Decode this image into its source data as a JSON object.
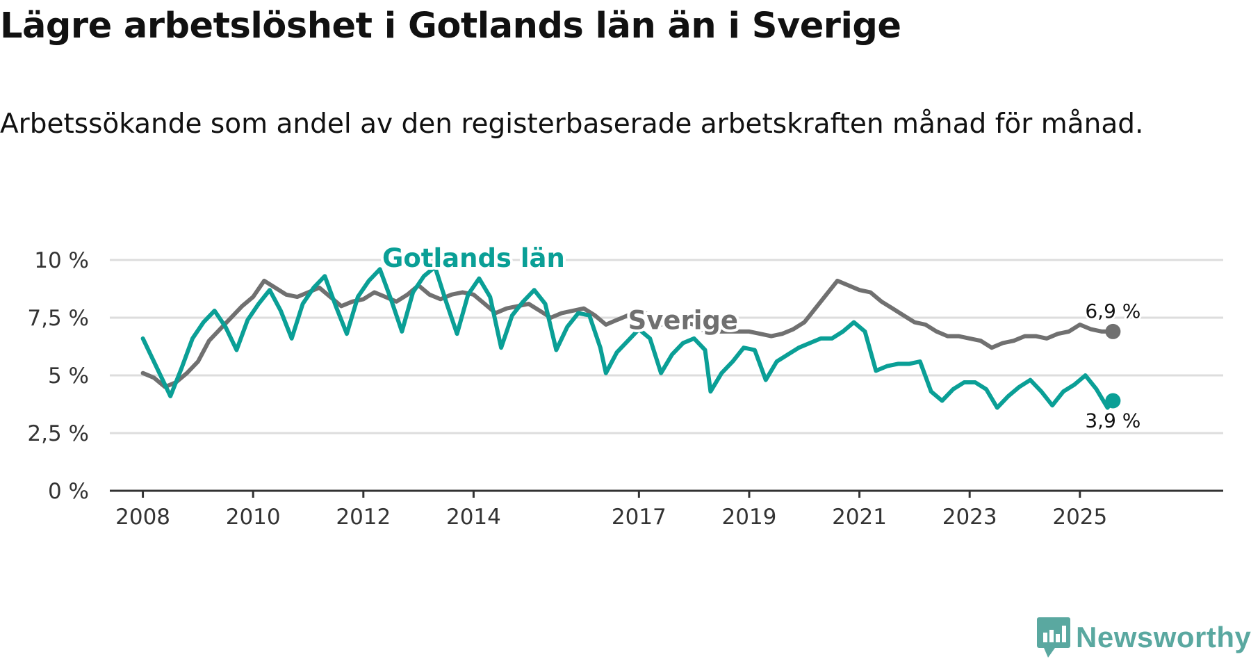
{
  "title": "Lägre arbetslöshet i Gotlands län än i Sverige",
  "subtitle": "Arbetssökande som andel av den registerbaserade arbetskraften månad för månad.",
  "brand": {
    "name": "Newsworthy",
    "icon": "newsworthy-logo-icon"
  },
  "colors": {
    "gotland": "#0a9f96",
    "sverige": "#707070",
    "grid": "#dddddd",
    "axis": "#333333",
    "brand": "#5aa8a0"
  },
  "chart_data": {
    "type": "line",
    "title": "Lägre arbetslöshet i Gotlands län än i Sverige",
    "subtitle": "Arbetssökande som andel av den registerbaserade arbetskraften månad för månad.",
    "xlabel": "",
    "ylabel": "",
    "ylim": [
      0,
      10
    ],
    "xlim": [
      2007.4,
      2027.6
    ],
    "yticks": [
      {
        "value": 0,
        "label": "0 %"
      },
      {
        "value": 2.5,
        "label": "2,5 %"
      },
      {
        "value": 5,
        "label": "5 %"
      },
      {
        "value": 7.5,
        "label": "7,5 %"
      },
      {
        "value": 10,
        "label": "10 %"
      }
    ],
    "xticks": [
      {
        "value": 2008,
        "label": "2008"
      },
      {
        "value": 2010,
        "label": "2010"
      },
      {
        "value": 2012,
        "label": "2012"
      },
      {
        "value": 2014,
        "label": "2014"
      },
      {
        "value": 2017,
        "label": "2017"
      },
      {
        "value": 2019,
        "label": "2019"
      },
      {
        "value": 2021,
        "label": "2021"
      },
      {
        "value": 2023,
        "label": "2023"
      },
      {
        "value": 2025,
        "label": "2025"
      }
    ],
    "grid": true,
    "series": [
      {
        "name": "Sverige",
        "label": "Sverige",
        "label_at": [
          2017.8,
          7.0
        ],
        "end_label": "6,9 %",
        "points": [
          [
            2008.0,
            5.1
          ],
          [
            2008.2,
            4.9
          ],
          [
            2008.4,
            4.5
          ],
          [
            2008.6,
            4.7
          ],
          [
            2008.8,
            5.1
          ],
          [
            2009.0,
            5.6
          ],
          [
            2009.2,
            6.5
          ],
          [
            2009.4,
            7.0
          ],
          [
            2009.6,
            7.5
          ],
          [
            2009.8,
            8.0
          ],
          [
            2010.0,
            8.4
          ],
          [
            2010.2,
            9.1
          ],
          [
            2010.4,
            8.8
          ],
          [
            2010.6,
            8.5
          ],
          [
            2010.8,
            8.4
          ],
          [
            2011.0,
            8.6
          ],
          [
            2011.2,
            8.8
          ],
          [
            2011.4,
            8.4
          ],
          [
            2011.6,
            8.0
          ],
          [
            2011.8,
            8.2
          ],
          [
            2012.0,
            8.3
          ],
          [
            2012.2,
            8.6
          ],
          [
            2012.4,
            8.4
          ],
          [
            2012.6,
            8.2
          ],
          [
            2012.8,
            8.5
          ],
          [
            2013.0,
            8.9
          ],
          [
            2013.2,
            8.5
          ],
          [
            2013.4,
            8.3
          ],
          [
            2013.6,
            8.5
          ],
          [
            2013.8,
            8.6
          ],
          [
            2014.0,
            8.5
          ],
          [
            2014.2,
            8.1
          ],
          [
            2014.4,
            7.7
          ],
          [
            2014.6,
            7.9
          ],
          [
            2014.8,
            8.0
          ],
          [
            2015.0,
            8.1
          ],
          [
            2015.2,
            7.8
          ],
          [
            2015.4,
            7.5
          ],
          [
            2015.6,
            7.7
          ],
          [
            2015.8,
            7.8
          ],
          [
            2016.0,
            7.9
          ],
          [
            2016.2,
            7.6
          ],
          [
            2016.4,
            7.2
          ],
          [
            2016.6,
            7.4
          ],
          [
            2016.8,
            7.6
          ],
          [
            2017.0,
            7.8
          ],
          [
            2017.2,
            7.6
          ],
          [
            2017.4,
            7.2
          ],
          [
            2017.6,
            7.4
          ],
          [
            2017.8,
            7.3
          ],
          [
            2018.0,
            7.2
          ],
          [
            2018.2,
            6.9
          ],
          [
            2018.4,
            6.9
          ],
          [
            2018.6,
            6.9
          ],
          [
            2018.8,
            6.9
          ],
          [
            2019.0,
            6.9
          ],
          [
            2019.2,
            6.8
          ],
          [
            2019.4,
            6.7
          ],
          [
            2019.6,
            6.8
          ],
          [
            2019.8,
            7.0
          ],
          [
            2020.0,
            7.3
          ],
          [
            2020.2,
            7.9
          ],
          [
            2020.4,
            8.5
          ],
          [
            2020.6,
            9.1
          ],
          [
            2020.8,
            8.9
          ],
          [
            2021.0,
            8.7
          ],
          [
            2021.2,
            8.6
          ],
          [
            2021.4,
            8.2
          ],
          [
            2021.6,
            7.9
          ],
          [
            2021.8,
            7.6
          ],
          [
            2022.0,
            7.3
          ],
          [
            2022.2,
            7.2
          ],
          [
            2022.4,
            6.9
          ],
          [
            2022.6,
            6.7
          ],
          [
            2022.8,
            6.7
          ],
          [
            2023.0,
            6.6
          ],
          [
            2023.2,
            6.5
          ],
          [
            2023.4,
            6.2
          ],
          [
            2023.6,
            6.4
          ],
          [
            2023.8,
            6.5
          ],
          [
            2024.0,
            6.7
          ],
          [
            2024.2,
            6.7
          ],
          [
            2024.4,
            6.6
          ],
          [
            2024.6,
            6.8
          ],
          [
            2024.8,
            6.9
          ],
          [
            2025.0,
            7.2
          ],
          [
            2025.2,
            7.0
          ],
          [
            2025.4,
            6.9
          ],
          [
            2025.6,
            6.9
          ]
        ]
      },
      {
        "name": "Gotlands län",
        "label": "Gotlands län",
        "label_at": [
          2014.0,
          9.7
        ],
        "end_label": "3,9 %",
        "points": [
          [
            2008.0,
            6.6
          ],
          [
            2008.2,
            5.6
          ],
          [
            2008.4,
            4.6
          ],
          [
            2008.5,
            4.1
          ],
          [
            2008.7,
            5.3
          ],
          [
            2008.9,
            6.6
          ],
          [
            2009.1,
            7.3
          ],
          [
            2009.3,
            7.8
          ],
          [
            2009.5,
            7.1
          ],
          [
            2009.7,
            6.1
          ],
          [
            2009.9,
            7.4
          ],
          [
            2010.1,
            8.1
          ],
          [
            2010.3,
            8.7
          ],
          [
            2010.5,
            7.8
          ],
          [
            2010.7,
            6.6
          ],
          [
            2010.9,
            8.1
          ],
          [
            2011.1,
            8.8
          ],
          [
            2011.3,
            9.3
          ],
          [
            2011.5,
            8.0
          ],
          [
            2011.7,
            6.8
          ],
          [
            2011.9,
            8.4
          ],
          [
            2012.1,
            9.1
          ],
          [
            2012.3,
            9.6
          ],
          [
            2012.5,
            8.3
          ],
          [
            2012.7,
            6.9
          ],
          [
            2012.9,
            8.6
          ],
          [
            2013.1,
            9.3
          ],
          [
            2013.3,
            9.7
          ],
          [
            2013.5,
            8.2
          ],
          [
            2013.7,
            6.8
          ],
          [
            2013.9,
            8.5
          ],
          [
            2014.1,
            9.2
          ],
          [
            2014.3,
            8.4
          ],
          [
            2014.5,
            6.2
          ],
          [
            2014.7,
            7.6
          ],
          [
            2014.9,
            8.2
          ],
          [
            2015.1,
            8.7
          ],
          [
            2015.3,
            8.1
          ],
          [
            2015.5,
            6.1
          ],
          [
            2015.7,
            7.1
          ],
          [
            2015.9,
            7.7
          ],
          [
            2016.1,
            7.6
          ],
          [
            2016.3,
            6.2
          ],
          [
            2016.4,
            5.1
          ],
          [
            2016.6,
            6.0
          ],
          [
            2016.8,
            6.5
          ],
          [
            2017.0,
            7.0
          ],
          [
            2017.2,
            6.6
          ],
          [
            2017.4,
            5.1
          ],
          [
            2017.6,
            5.9
          ],
          [
            2017.8,
            6.4
          ],
          [
            2018.0,
            6.6
          ],
          [
            2018.2,
            6.1
          ],
          [
            2018.3,
            4.3
          ],
          [
            2018.5,
            5.1
          ],
          [
            2018.7,
            5.6
          ],
          [
            2018.9,
            6.2
          ],
          [
            2019.1,
            6.1
          ],
          [
            2019.3,
            4.8
          ],
          [
            2019.5,
            5.6
          ],
          [
            2019.7,
            5.9
          ],
          [
            2019.9,
            6.2
          ],
          [
            2020.1,
            6.4
          ],
          [
            2020.3,
            6.6
          ],
          [
            2020.5,
            6.6
          ],
          [
            2020.7,
            6.9
          ],
          [
            2020.9,
            7.3
          ],
          [
            2021.1,
            6.9
          ],
          [
            2021.3,
            5.2
          ],
          [
            2021.5,
            5.4
          ],
          [
            2021.7,
            5.5
          ],
          [
            2021.9,
            5.5
          ],
          [
            2022.1,
            5.6
          ],
          [
            2022.3,
            4.3
          ],
          [
            2022.5,
            3.9
          ],
          [
            2022.7,
            4.4
          ],
          [
            2022.9,
            4.7
          ],
          [
            2023.1,
            4.7
          ],
          [
            2023.3,
            4.4
          ],
          [
            2023.5,
            3.6
          ],
          [
            2023.7,
            4.1
          ],
          [
            2023.9,
            4.5
          ],
          [
            2024.1,
            4.8
          ],
          [
            2024.3,
            4.3
          ],
          [
            2024.5,
            3.7
          ],
          [
            2024.7,
            4.3
          ],
          [
            2024.9,
            4.6
          ],
          [
            2025.1,
            5.0
          ],
          [
            2025.3,
            4.4
          ],
          [
            2025.5,
            3.6
          ],
          [
            2025.6,
            3.9
          ]
        ]
      }
    ]
  }
}
